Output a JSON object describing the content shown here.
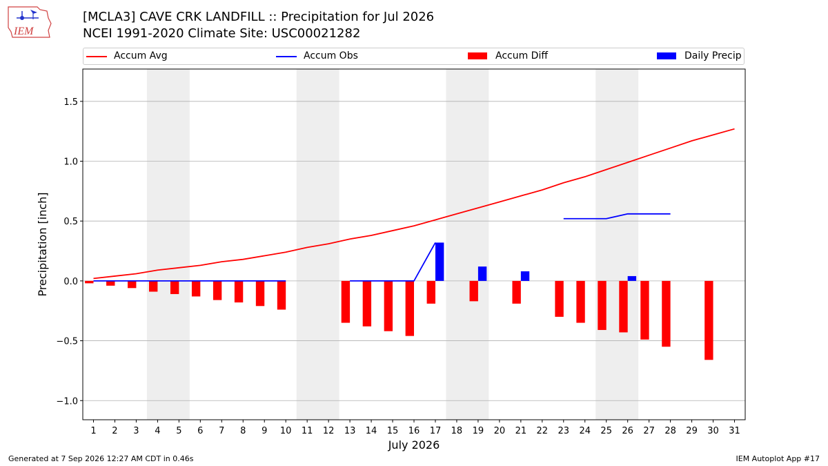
{
  "header": {
    "title_line1": "[MCLA3] CAVE CRK LANDFILL :: Precipitation for Jul 2026",
    "title_line2": "NCEI 1991-2020 Climate Site: USC00021282",
    "logo_text": "IEM"
  },
  "footer": {
    "left": "Generated at 7 Sep 2026 12:27 AM CDT in 0.46s",
    "right": "IEM Autoplot App #17"
  },
  "colors": {
    "accum_avg": "#ff0000",
    "accum_obs": "#0000ff",
    "accum_diff": "#ff0000",
    "daily_precip": "#0000ff",
    "weekend_shade": "#eeeeee",
    "grid": "#b0b0b0"
  },
  "chart_data": {
    "type": "bar",
    "xlabel": "July 2026",
    "ylabel": "Precipitation [inch]",
    "xlim": [
      0.5,
      31.5
    ],
    "ylim": [
      -1.16,
      1.77
    ],
    "yticks": [
      -1.0,
      -0.5,
      0.0,
      0.5,
      1.0,
      1.5
    ],
    "ytick_labels": [
      "−1.0",
      "−0.5",
      "0.0",
      "0.5",
      "1.0",
      "1.5"
    ],
    "xticks": [
      1,
      2,
      3,
      4,
      5,
      6,
      7,
      8,
      9,
      10,
      11,
      12,
      13,
      14,
      15,
      16,
      17,
      18,
      19,
      20,
      21,
      22,
      23,
      24,
      25,
      26,
      27,
      28,
      29,
      30,
      31
    ],
    "grid": "horizontal",
    "legend_position": "top",
    "legend": [
      "Accum Avg",
      "Accum Obs",
      "Accum Diff",
      "Daily Precip"
    ],
    "weekend_spans": [
      [
        3.5,
        5.5
      ],
      [
        10.5,
        12.5
      ],
      [
        17.5,
        19.5
      ],
      [
        24.5,
        26.5
      ]
    ],
    "accum_avg": {
      "x": [
        1,
        2,
        3,
        4,
        5,
        6,
        7,
        8,
        9,
        10,
        11,
        12,
        13,
        14,
        15,
        16,
        17,
        18,
        19,
        20,
        21,
        22,
        23,
        24,
        25,
        26,
        27,
        28,
        29,
        30,
        31
      ],
      "y": [
        0.02,
        0.04,
        0.06,
        0.09,
        0.11,
        0.13,
        0.16,
        0.18,
        0.21,
        0.24,
        0.28,
        0.31,
        0.35,
        0.38,
        0.42,
        0.46,
        0.51,
        0.56,
        0.61,
        0.66,
        0.71,
        0.76,
        0.82,
        0.87,
        0.93,
        0.99,
        1.05,
        1.11,
        1.17,
        1.22,
        1.27
      ]
    },
    "accum_obs": [
      {
        "x": [
          1,
          2,
          3,
          4,
          5,
          6,
          7,
          8,
          9,
          10
        ],
        "y": [
          0,
          0,
          0,
          0,
          0,
          0,
          0,
          0,
          0,
          0
        ]
      },
      {
        "x": [
          13,
          14,
          15,
          16,
          17
        ],
        "y": [
          0,
          0,
          0,
          0,
          0.32
        ]
      },
      {
        "x": [
          23,
          24,
          25,
          26,
          27,
          28
        ],
        "y": [
          0.52,
          0.52,
          0.52,
          0.56,
          0.56,
          0.56
        ]
      }
    ],
    "accum_diff": {
      "x": [
        1,
        2,
        3,
        4,
        5,
        6,
        7,
        8,
        9,
        10,
        13,
        14,
        15,
        16,
        17,
        19,
        21,
        23,
        24,
        25,
        26,
        27,
        28,
        30
      ],
      "y": [
        -0.02,
        -0.04,
        -0.06,
        -0.09,
        -0.11,
        -0.13,
        -0.16,
        -0.18,
        -0.21,
        -0.24,
        -0.35,
        -0.38,
        -0.42,
        -0.46,
        -0.19,
        -0.17,
        -0.19,
        -0.3,
        -0.35,
        -0.41,
        -0.43,
        -0.49,
        -0.55,
        -0.66
      ]
    },
    "daily_precip": {
      "x": [
        17,
        19,
        21,
        26
      ],
      "y": [
        0.32,
        0.12,
        0.08,
        0.04
      ]
    }
  }
}
